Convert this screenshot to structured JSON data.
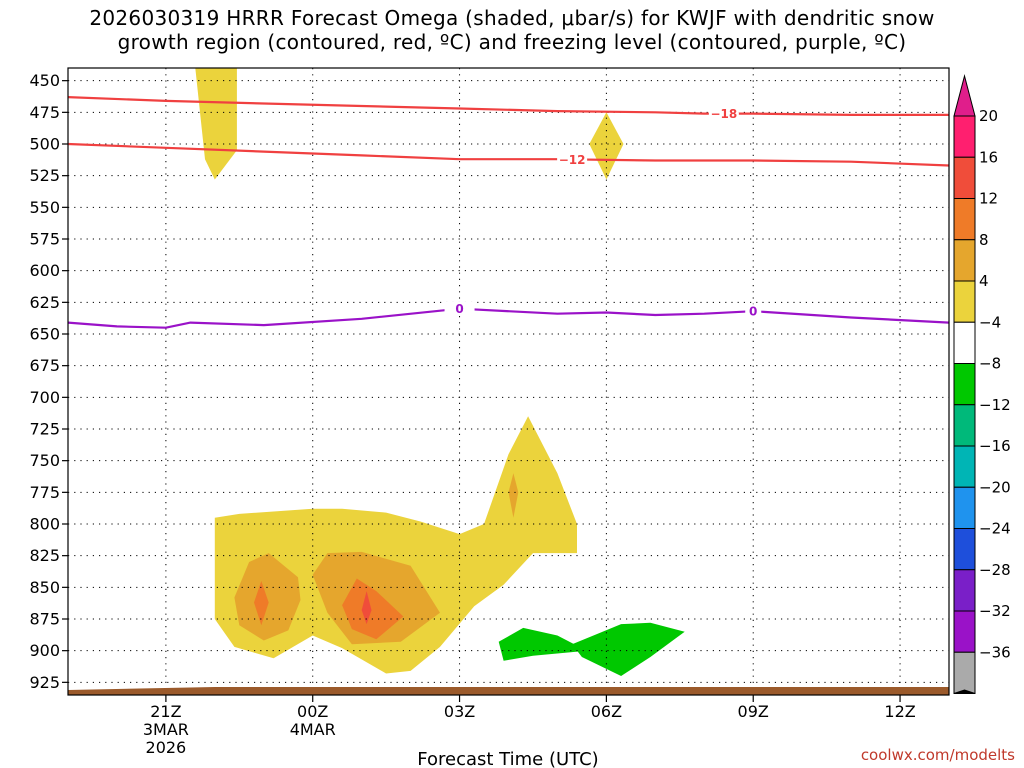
{
  "chart_data": {
    "type": "contour-time-height",
    "title_line1": "2026030319 HRRR Forecast Omega (shaded, μbar/s) for KWJF with dendritic snow",
    "title_line2": "growth region (contoured, red, ºC) and freezing level (contoured, purple, ºC)",
    "xlabel": "Forecast Time (UTC)",
    "credit": "coolwx.com/modelts",
    "x_range_hours": [
      -2.0,
      16.0
    ],
    "y_range_hpa": [
      440,
      935
    ],
    "pressure_ticks": [
      450,
      475,
      500,
      525,
      550,
      575,
      600,
      625,
      650,
      675,
      700,
      725,
      750,
      775,
      800,
      825,
      850,
      875,
      900,
      925
    ],
    "time_ticks": [
      {
        "hour": 0,
        "label": "21Z",
        "sub1": "3MAR",
        "sub2": "2026"
      },
      {
        "hour": 3,
        "label": "00Z",
        "sub1": "4MAR",
        "sub2": ""
      },
      {
        "hour": 6,
        "label": "03Z",
        "sub1": "",
        "sub2": ""
      },
      {
        "hour": 9,
        "label": "06Z",
        "sub1": "",
        "sub2": ""
      },
      {
        "hour": 12,
        "label": "09Z",
        "sub1": "",
        "sub2": ""
      },
      {
        "hour": 15,
        "label": "12Z",
        "sub1": "",
        "sub2": ""
      }
    ],
    "colorbar": {
      "labels": [
        "20",
        "16",
        "12",
        "8",
        "4",
        "−4",
        "−8",
        "−12",
        "−16",
        "−20",
        "−24",
        "−28",
        "−32",
        "−36"
      ],
      "colors": [
        "#ff1f6f",
        "#f04d3a",
        "#ef7b28",
        "#e5a62d",
        "#ebd33c",
        "#ffffff",
        "#00c800",
        "#00b97a",
        "#00b5b5",
        "#1f93ee",
        "#1e4fdb",
        "#7a1fc8",
        "#9a12c8",
        "#aaaaaa"
      ],
      "top_arrow_color": "#e01e8b",
      "bottom_arrow_color": "#000000"
    },
    "contours": {
      "dgz_minus18": {
        "label": "−18",
        "color": "#f04040",
        "points": [
          [
            -2,
            463
          ],
          [
            0,
            466
          ],
          [
            2,
            468
          ],
          [
            4,
            470
          ],
          [
            6,
            472
          ],
          [
            8,
            474
          ],
          [
            10,
            475
          ],
          [
            11,
            476
          ],
          [
            12,
            476
          ],
          [
            14,
            477
          ],
          [
            16,
            477
          ]
        ]
      },
      "dgz_minus12": {
        "label": "−12",
        "color": "#f04040",
        "points": [
          [
            -2,
            500
          ],
          [
            0,
            503
          ],
          [
            2,
            506
          ],
          [
            4,
            509
          ],
          [
            6,
            512
          ],
          [
            8,
            512
          ],
          [
            10,
            513
          ],
          [
            12,
            513
          ],
          [
            14,
            514
          ],
          [
            16,
            517
          ]
        ]
      },
      "freezing_0": {
        "label": "0",
        "color": "#9a12c8",
        "points": [
          [
            -2,
            641
          ],
          [
            -1,
            644
          ],
          [
            0,
            645
          ],
          [
            0.5,
            641
          ],
          [
            2,
            643
          ],
          [
            4,
            638
          ],
          [
            6,
            630
          ],
          [
            8,
            634
          ],
          [
            9,
            633
          ],
          [
            10,
            635
          ],
          [
            11,
            634
          ],
          [
            12,
            632
          ],
          [
            14,
            637
          ],
          [
            16,
            641
          ]
        ]
      }
    },
    "omega_regions": [
      {
        "level": 4,
        "color": "#ebd33c",
        "desc": "column 21Z-22Z",
        "points": [
          [
            0.6,
            440
          ],
          [
            1.45,
            440
          ],
          [
            1.45,
            505
          ],
          [
            1.0,
            528
          ],
          [
            0.8,
            512
          ],
          [
            0.6,
            440
          ]
        ]
      },
      {
        "level": 4,
        "color": "#ebd33c",
        "desc": "lens near 06Z",
        "points": [
          [
            9,
            475
          ],
          [
            9.35,
            500
          ],
          [
            9,
            528
          ],
          [
            8.65,
            500
          ]
        ]
      },
      {
        "level": 4,
        "color": "#ebd33c",
        "desc": "lower main area",
        "points": [
          [
            1,
            795
          ],
          [
            1.5,
            792
          ],
          [
            3,
            788
          ],
          [
            3.6,
            788
          ],
          [
            4.5,
            791
          ],
          [
            5.2,
            798
          ],
          [
            6,
            808
          ],
          [
            6.5,
            800
          ],
          [
            7,
            745
          ],
          [
            7.4,
            715
          ],
          [
            8.0,
            760
          ],
          [
            8.4,
            800
          ],
          [
            8.4,
            823
          ],
          [
            7.5,
            823
          ],
          [
            6.9,
            848
          ],
          [
            6.3,
            865
          ],
          [
            5.6,
            897
          ],
          [
            5.0,
            916
          ],
          [
            4.5,
            918
          ],
          [
            3.6,
            898
          ],
          [
            3.0,
            888
          ],
          [
            2.2,
            906
          ],
          [
            1.4,
            897
          ],
          [
            1.0,
            875
          ],
          [
            1.0,
            795
          ]
        ]
      },
      {
        "level": 8,
        "color": "#e5a62d",
        "points": [
          [
            1.4,
            858
          ],
          [
            1.7,
            830
          ],
          [
            2.1,
            823
          ],
          [
            2.7,
            842
          ],
          [
            2.75,
            860
          ],
          [
            2.5,
            884
          ],
          [
            2.0,
            892
          ],
          [
            1.5,
            880
          ]
        ]
      },
      {
        "level": 8,
        "color": "#e5a62d",
        "points": [
          [
            3.0,
            840
          ],
          [
            3.3,
            823
          ],
          [
            4.0,
            822
          ],
          [
            5.0,
            833
          ],
          [
            5.6,
            870
          ],
          [
            4.8,
            893
          ],
          [
            3.8,
            895
          ],
          [
            3.3,
            870
          ]
        ]
      },
      {
        "level": 8,
        "color": "#e5a62d",
        "points": [
          [
            7.0,
            775
          ],
          [
            7.1,
            760
          ],
          [
            7.2,
            775
          ],
          [
            7.1,
            795
          ]
        ]
      },
      {
        "level": 12,
        "color": "#ef7b28",
        "points": [
          [
            1.8,
            862
          ],
          [
            1.95,
            845
          ],
          [
            2.1,
            862
          ],
          [
            1.95,
            880
          ]
        ]
      },
      {
        "level": 12,
        "color": "#ef7b28",
        "points": [
          [
            3.6,
            864
          ],
          [
            3.9,
            843
          ],
          [
            4.3,
            853
          ],
          [
            4.85,
            873
          ],
          [
            4.3,
            891
          ],
          [
            3.8,
            883
          ]
        ]
      },
      {
        "level": 16,
        "color": "#f04d3a",
        "points": [
          [
            4.0,
            868
          ],
          [
            4.1,
            853
          ],
          [
            4.2,
            868
          ],
          [
            4.1,
            879
          ]
        ]
      },
      {
        "level": -4,
        "color": "#00c800",
        "points": [
          [
            6.8,
            893
          ],
          [
            7.3,
            882
          ],
          [
            8.0,
            888
          ],
          [
            8.6,
            900
          ],
          [
            7.5,
            904
          ],
          [
            6.9,
            908
          ]
        ]
      },
      {
        "level": -4,
        "color": "#00c800",
        "points": [
          [
            8.3,
            895
          ],
          [
            9.3,
            879
          ],
          [
            9.9,
            878
          ],
          [
            10.6,
            885
          ],
          [
            9.9,
            905
          ],
          [
            9.3,
            920
          ],
          [
            8.5,
            905
          ]
        ]
      }
    ],
    "ground_color": "#9b5a2b"
  }
}
